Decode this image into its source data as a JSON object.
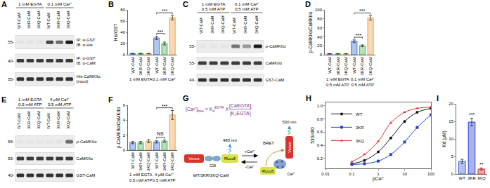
{
  "blots": [
    {
      "panel": "A",
      "groups": [
        {
          "label": [
            "1 mM EGTA"
          ],
          "lanes": [
            "WT-CaM",
            "3KR-CaM",
            "3KQ-CaM"
          ]
        },
        {
          "label": [
            "0.1 mM Ca²⁺"
          ],
          "lanes": [
            "WT-CaM",
            "3KR-CaM",
            "3KQ-CaM"
          ]
        }
      ],
      "rows": [
        {
          "mw": "55-",
          "label": [
            "IP: α-GST",
            "IB: α-His"
          ],
          "bands": [
            0.04,
            0.04,
            0.04,
            0.75,
            0.6,
            0.95
          ]
        },
        {
          "mw": "40-",
          "label": [
            "IP: α-GST",
            "IB: α-CaM"
          ],
          "bands": [
            0.8,
            0.8,
            0.8,
            0.8,
            0.8,
            0.8
          ]
        },
        {
          "mw": "55-",
          "label": [
            "His-CaMKIIα",
            "(input)"
          ],
          "bands": [
            0.85,
            0.85,
            0.85,
            0.85,
            0.85,
            0.85
          ]
        }
      ]
    },
    {
      "panel": "C",
      "groups": [
        {
          "label": [
            "1 mM EGTA",
            "0.5 mM ATP"
          ],
          "lanes": [
            "WT-CaM",
            "3KR-CaM",
            "3KQ-CaM"
          ]
        },
        {
          "label": [
            "0.1 mM Ca²⁺",
            "0.5 mM ATP"
          ],
          "lanes": [
            "WT-CaM",
            "3KR-CaM",
            "3KQ-CaM"
          ]
        }
      ],
      "rows": [
        {
          "mw": "55-",
          "label": [
            "p-CaMKIIα"
          ],
          "bands": [
            0.03,
            0.03,
            0.03,
            0.55,
            0.4,
            0.95
          ]
        },
        {
          "mw": "55-",
          "label": [
            "CaMKIIα"
          ],
          "bands": [
            0.8,
            0.8,
            0.8,
            0.8,
            0.8,
            0.8
          ]
        },
        {
          "mw": "40-",
          "label": [
            "GST-CaM"
          ],
          "bands": [
            0.85,
            0.85,
            0.85,
            0.85,
            0.85,
            0.85
          ]
        }
      ]
    },
    {
      "panel": "E",
      "groups": [
        {
          "label": [
            "1 mM EGTA",
            "0.5 mM ATP"
          ],
          "lanes": [
            "WT-CaM",
            "3KR-CaM",
            "3KQ-CaM"
          ]
        },
        {
          "label": [
            "4 μM Ca²⁺",
            "0.5 mM ATP"
          ],
          "lanes": [
            "WT-CaM",
            "3KR-CaM",
            "3KQ-CaM"
          ]
        }
      ],
      "rows": [
        {
          "mw": "55-",
          "label": [
            "p-CaMKIIα"
          ],
          "bands": [
            0.03,
            0.03,
            0.03,
            0.03,
            0.04,
            0.6
          ]
        },
        {
          "mw": "55-",
          "label": [
            "CaMKIIα"
          ],
          "bands": [
            0.8,
            0.8,
            0.8,
            0.8,
            0.8,
            0.8
          ]
        },
        {
          "mw": "40-",
          "label": [
            "GST-CaM"
          ],
          "bands": [
            0.85,
            0.85,
            0.85,
            0.85,
            0.85,
            0.85
          ]
        }
      ]
    }
  ],
  "chart_data": [
    {
      "panel": "B",
      "type": "bar",
      "y_label": "His/GST",
      "grid": false,
      "categories": [
        "WT-CaM",
        "3KR-CaM",
        "3KQ-CaM",
        "WT-CaM",
        "3KR-CaM",
        "3KQ-CaM"
      ],
      "groups": [
        {
          "label": [
            "1 mM EGTA"
          ],
          "from": 0,
          "to": 2
        },
        {
          "label": [
            "0.1 mM Ca²⁺"
          ],
          "from": 3,
          "to": 5
        }
      ],
      "values": [
        2,
        2,
        2,
        30,
        20,
        66
      ],
      "errors": [
        0.5,
        0.5,
        0.5,
        3,
        2.5,
        4
      ],
      "colors": [
        "#3f72d6",
        "#4cb050",
        "#f0a040",
        "#3f72d6",
        "#4cb050",
        "#f0a040"
      ],
      "ylim": [
        0,
        80
      ],
      "yticks": [
        0,
        20,
        40,
        60,
        80
      ],
      "significance": [
        {
          "from": 3,
          "to": 4,
          "label": "***"
        },
        {
          "from": 3,
          "to": 5,
          "label": "***"
        }
      ]
    },
    {
      "panel": "D",
      "type": "bar",
      "y_label": "p-CaMKIIα/CaMKIIα",
      "grid": false,
      "categories": [
        "WT-CaM",
        "3KR-CaM",
        "3KQ-CaM",
        "WT-CaM",
        "3KR-CaM",
        "3KQ-CaM"
      ],
      "groups": [
        {
          "label": [
            "1 mM EGTA",
            "0.5 mM ATP"
          ],
          "from": 0,
          "to": 2
        },
        {
          "label": [
            "0.1 mM Ca²⁺",
            "0.5 mM ATP"
          ],
          "from": 3,
          "to": 5
        }
      ],
      "values": [
        2,
        2,
        2,
        30,
        20,
        82
      ],
      "errors": [
        0.5,
        0.5,
        0.5,
        3,
        2,
        5
      ],
      "colors": [
        "#3f72d6",
        "#4cb050",
        "#f0a040",
        "#3f72d6",
        "#4cb050",
        "#f0a040"
      ],
      "ylim": [
        0,
        100
      ],
      "yticks": [
        0,
        20,
        40,
        60,
        80,
        100
      ],
      "significance": [
        {
          "from": 3,
          "to": 4,
          "label": "***"
        },
        {
          "from": 3,
          "to": 5,
          "label": "***"
        }
      ]
    },
    {
      "panel": "F",
      "type": "bar",
      "y_label": "p-CaMKIIα/CaMKIIα",
      "grid": false,
      "categories": [
        "WT-CaM",
        "3KR-CaM",
        "3KQ-CaM",
        "WT-CaM",
        "3KR-CaM",
        "3KQ-CaM"
      ],
      "groups": [
        {
          "label": [
            "1 mM EGTA",
            "0.5 mM ATP"
          ],
          "from": 0,
          "to": 2
        },
        {
          "label": [
            "4 μM Ca²⁺",
            "0.5 mM ATP"
          ],
          "from": 3,
          "to": 5
        }
      ],
      "values": [
        1,
        1,
        1.2,
        1.1,
        1.2,
        4.7
      ],
      "errors": [
        0.15,
        0.15,
        0.2,
        0.15,
        0.15,
        0.6
      ],
      "colors": [
        "#3f72d6",
        "#4cb050",
        "#f0a040",
        "#3f72d6",
        "#4cb050",
        "#f0a040"
      ],
      "ylim": [
        0,
        6
      ],
      "yticks": [
        0,
        2,
        4,
        6
      ],
      "significance": [
        {
          "from": 3,
          "to": 4,
          "label": "NS"
        },
        {
          "from": 3,
          "to": 5,
          "label": "***"
        }
      ]
    },
    {
      "panel": "H",
      "type": "line",
      "x_label": "pCa²⁺",
      "y_label": "530/480",
      "log": "x",
      "legend": "top-left",
      "grid": false,
      "x": [
        0.1,
        0.3,
        1,
        3,
        10,
        30,
        100
      ],
      "series": [
        {
          "name": "WT",
          "color": "#111111",
          "marker": "circle",
          "line_style": "solid",
          "values": [
            0.12,
            0.17,
            0.3,
            0.51,
            0.76,
            0.9,
            0.96
          ]
        },
        {
          "name": "3KR",
          "color": "#2342d4",
          "marker": "square",
          "line_style": "solid",
          "values": [
            0.11,
            0.12,
            0.16,
            0.26,
            0.45,
            0.67,
            0.86
          ]
        },
        {
          "name": "3KQ",
          "color": "#e0302a",
          "marker": "triangle-up",
          "line_style": "solid",
          "values": [
            0.15,
            0.26,
            0.46,
            0.74,
            0.9,
            0.96,
            0.98
          ]
        }
      ],
      "xlim": [
        0.01,
        100
      ],
      "xticks": [
        0.01,
        0.1,
        1,
        10,
        100
      ],
      "ylim": [
        0.05,
        1.05
      ],
      "yticks": [
        0.2,
        0.4,
        0.6,
        0.8,
        {
          "value": 1,
          "label": "1.0"
        }
      ]
    },
    {
      "panel": "I",
      "type": "bar",
      "y_label": "Kd (μM)",
      "grid": false,
      "categories": [
        "WT",
        "3KR",
        "3KQ"
      ],
      "values": [
        3.6,
        14.8,
        1.4
      ],
      "errors": [
        0.6,
        1.1,
        0.3
      ],
      "colors": [
        "#3f5fd8",
        "#2342d4",
        "#e0302a"
      ],
      "ylim": [
        0,
        20
      ],
      "yticks": [
        0,
        5,
        10,
        15,
        20
      ],
      "significance": [
        {
          "from": 1,
          "to": 1,
          "label": "***"
        },
        {
          "from": 2,
          "to": 2,
          "label": "**"
        }
      ]
    }
  ],
  "diagram": {
    "panel": "G",
    "formula": {
      "left": "[Ca²⁺]",
      "left_sub": "free",
      "equals": "=",
      "k": "K",
      "k_sub": "d",
      "k_sup": "EGTA",
      "times": "X",
      "numerator": "[CaEGTA]",
      "denominator": "[K₂EGTA]"
    },
    "unbound": {
      "acceptor": "Venus",
      "donor": "RLuc8",
      "emission": "480 nm",
      "linker": "C18"
    },
    "bound": {
      "acceptor": "Venus",
      "donor": "RLuc8",
      "emission": "530 nm",
      "transfer": "BRET",
      "ion": "Ca²⁺"
    },
    "forward": "+Ca²⁺",
    "reverse": "-Ca²⁺",
    "caption": "WT/3KR/3KQ-CaM"
  }
}
